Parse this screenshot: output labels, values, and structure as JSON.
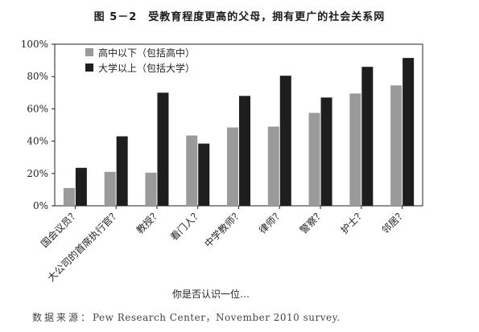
{
  "figure": {
    "number": "图 5－2",
    "title": "受教育程度更高的父母，拥有更广的社会关系网"
  },
  "source": {
    "label": "数据来源：",
    "text": "Pew Research Center，November 2010 survey."
  },
  "chart_data": {
    "type": "bar",
    "title": "受教育程度更高的父母，拥有更广的社会关系网",
    "xlabel": "你是否认识一位…",
    "ylabel": "",
    "ylim": [
      0,
      100
    ],
    "yticks": [
      0,
      20,
      40,
      60,
      80,
      100
    ],
    "ytick_labels": [
      "0%",
      "20%",
      "40%",
      "60%",
      "80%",
      "100%"
    ],
    "grid": false,
    "legend": "top-left",
    "categories": [
      "国会议员？",
      "大公司的首席执行官？",
      "教授？",
      "看门人？",
      "中学教师？",
      "律师？",
      "警察？",
      "护士？",
      "邻居？"
    ],
    "series": [
      {
        "name": "高中以下（包括高中）",
        "color": "#9a9a9a",
        "values": [
          11,
          21,
          20.5,
          43.5,
          48.5,
          49,
          57.5,
          69.5,
          74.5
        ]
      },
      {
        "name": "大学以上（包括大学）",
        "color": "#1e1e1e",
        "values": [
          23.5,
          43,
          70,
          38.5,
          68,
          80.5,
          67,
          86,
          91.5
        ]
      }
    ]
  }
}
